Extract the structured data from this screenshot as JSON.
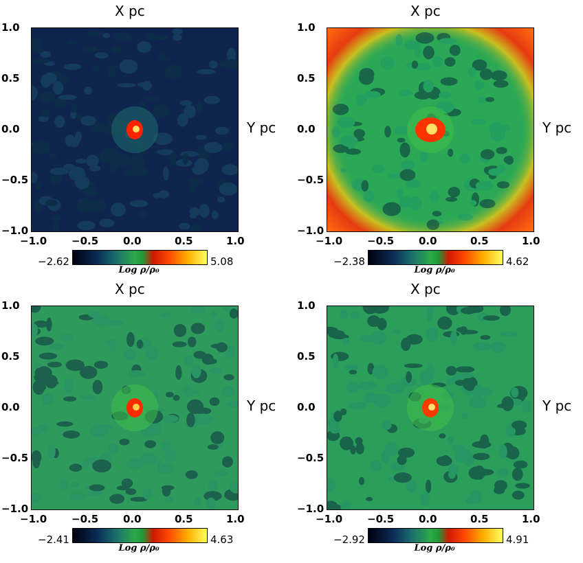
{
  "chart_data": [
    {
      "type": "heatmap",
      "xlabel": "X pc",
      "ylabel": "Y pc",
      "xlim": [
        -1.0,
        1.0
      ],
      "ylim": [
        -1.0,
        1.0
      ],
      "xticks": [
        "−1.0",
        "−0.5",
        "0.0",
        "0.5",
        "1.0"
      ],
      "yticks": [
        "1.0",
        "0.5",
        "0.0",
        "−0.5",
        "−1.0"
      ],
      "colorbar": {
        "label": "Log ρ/ρ₀",
        "min": "−2.62",
        "max": "5.08"
      },
      "colors": {
        "background": "#0f2550",
        "mid": "#1b4d66",
        "core": "#ff2200",
        "peak": "#ffe066"
      }
    },
    {
      "type": "heatmap",
      "xlabel": "X pc",
      "ylabel": "Y pc",
      "xlim": [
        -1.0,
        1.0
      ],
      "ylim": [
        -1.0,
        1.0
      ],
      "xticks": [
        "−1.0",
        "−0.5",
        "0.0",
        "0.5",
        "1.0"
      ],
      "yticks": [
        "1.0",
        "0.5",
        "0.0",
        "−0.5",
        "−1.0"
      ],
      "colorbar": {
        "label": "Log ρ/ρ₀",
        "min": "−2.38",
        "max": "4.62"
      },
      "colors": {
        "background": "#2aa855",
        "mid": "#1f9a6a",
        "core": "#ff3300",
        "peak": "#ffe066",
        "corner": "#e63b10"
      }
    },
    {
      "type": "heatmap",
      "xlabel": "X pc",
      "ylabel": "Y pc",
      "xlim": [
        -1.0,
        1.0
      ],
      "ylim": [
        -1.0,
        1.0
      ],
      "xticks": [
        "−1.0",
        "−0.5",
        "0.0",
        "0.5",
        "1.0"
      ],
      "yticks": [
        "1.0",
        "0.5",
        "0.0",
        "−0.5",
        "−1.0"
      ],
      "colorbar": {
        "label": "Log ρ/ρ₀",
        "min": "−2.41",
        "max": "4.63"
      },
      "colors": {
        "background": "#2e9a5c",
        "mid": "#27906a",
        "core": "#ff2a00",
        "peak": "#ffd04a"
      }
    },
    {
      "type": "heatmap",
      "xlabel": "X pc",
      "ylabel": "Y pc",
      "xlim": [
        -1.0,
        1.0
      ],
      "ylim": [
        -1.0,
        1.0
      ],
      "xticks": [
        "−1.0",
        "−0.5",
        "0.0",
        "0.5",
        "1.0"
      ],
      "yticks": [
        "1.0",
        "0.5",
        "0.0",
        "−0.5",
        "−1.0"
      ],
      "colorbar": {
        "label": "Log ρ/ρ₀",
        "min": "−2.92",
        "max": "4.91"
      },
      "colors": {
        "background": "#2a9e5a",
        "mid": "#24906a",
        "core": "#ff3a00",
        "peak": "#ffe070"
      }
    }
  ]
}
